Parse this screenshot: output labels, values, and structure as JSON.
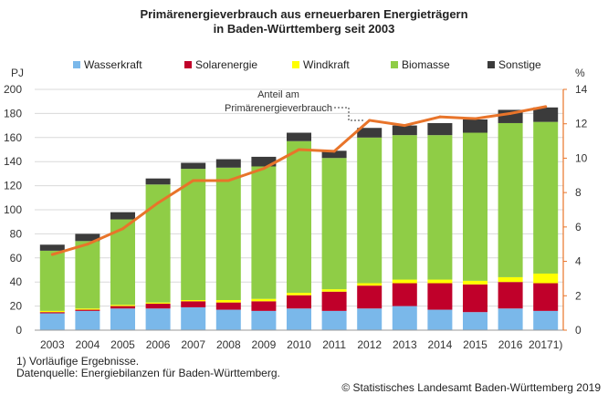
{
  "title_line1": "Primärenergieverbrauch aus erneuerbaren Energieträgern",
  "title_line2": "in Baden-Württemberg seit 2003",
  "footnote": "1) Vorläufige Ergebnisse.",
  "source": "Datenquelle: Energiebilanzen für Baden-Württemberg.",
  "copyright": "© Statistisches Landesamt Baden-Württemberg 2019",
  "colors": {
    "wasserkraft": "#7ab8ea",
    "solarenergie": "#c0002a",
    "windkraft": "#ffff00",
    "biomasse": "#8fcd46",
    "sonstige": "#3b3b3b",
    "anteil": "#e8742a",
    "axis": "#9a9a9a",
    "grid": "#d9d9d9"
  },
  "chart_data": {
    "type": "bar",
    "stacked": true,
    "categories": [
      "2003",
      "2004",
      "2005",
      "2006",
      "2007",
      "2008",
      "2009",
      "2010",
      "2011",
      "2012",
      "2013",
      "2014",
      "2015",
      "2016",
      "20171)"
    ],
    "series": [
      {
        "name": "Wasserkraft",
        "key": "wasserkraft",
        "values": [
          14,
          16,
          18,
          18,
          19,
          17,
          16,
          18,
          16,
          18,
          20,
          17,
          15,
          18,
          16
        ]
      },
      {
        "name": "Solarenergie",
        "key": "solarenergie",
        "values": [
          1,
          1,
          2,
          4,
          5,
          6,
          8,
          11,
          16,
          19,
          19,
          22,
          23,
          22,
          23
        ]
      },
      {
        "name": "Windkraft",
        "key": "windkraft",
        "values": [
          1,
          1,
          1,
          1,
          1,
          2,
          2,
          2,
          2,
          2,
          3,
          3,
          3,
          4,
          8
        ]
      },
      {
        "name": "Biomasse",
        "key": "biomasse",
        "values": [
          50,
          56,
          71,
          98,
          109,
          110,
          110,
          126,
          109,
          121,
          120,
          120,
          123,
          128,
          126
        ]
      },
      {
        "name": "Sonstige",
        "key": "sonstige",
        "values": [
          5,
          6,
          6,
          5,
          5,
          7,
          8,
          7,
          6,
          8,
          8,
          10,
          11,
          11,
          12
        ]
      }
    ],
    "line": {
      "name": "Anteil am Primärenergieverbrauch",
      "label_line1": "Anteil am",
      "label_line2": "Primärenergieverbrauch",
      "axis": "right",
      "values": [
        4.4,
        5.0,
        5.9,
        7.4,
        8.7,
        8.7,
        9.4,
        10.5,
        10.4,
        12.2,
        11.9,
        12.4,
        12.3,
        12.6,
        13.0
      ]
    },
    "ylabel_left": "PJ",
    "ylabel_right": "%",
    "ylim_left": [
      0,
      200
    ],
    "ylim_right": [
      0,
      14
    ],
    "yticks_left": [
      "0",
      "20",
      "40",
      "60",
      "80",
      "100",
      "120",
      "140",
      "160",
      "180",
      "200"
    ],
    "yticks_right": [
      "0",
      "2",
      "4",
      "6",
      "8",
      "10",
      "12",
      "14"
    ],
    "grid": true,
    "legend_position": "top"
  }
}
